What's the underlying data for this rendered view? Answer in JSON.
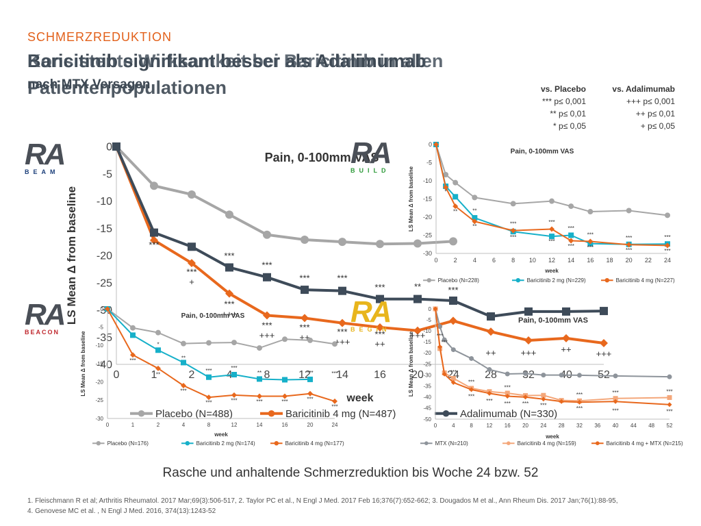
{
  "header": {
    "kicker": "SCHMERZREDUKTION",
    "title_line1_a": "Baricitinib signifikant besser als Adalimumab",
    "title_line1_b": "Konsistente Wirksamkeit bei Baricitinib in allen",
    "title_line2_a": "nach MTX Versagen",
    "title_line2_b": "Patientenpopulationen"
  },
  "significance": {
    "placebo": {
      "head": "vs. Placebo",
      "rows": [
        "*** p≤ 0,001",
        "** p≤ 0,01",
        "* p≤ 0,05"
      ]
    },
    "adalimumab": {
      "head": "vs. Adalimumab",
      "rows": [
        "+++ p≤ 0,001",
        "++ p≤ 0,01",
        "+ p≤ 0,05"
      ]
    }
  },
  "logos": {
    "beam": {
      "ra": "RA",
      "sub": "BEAM"
    },
    "build": {
      "ra": "RA",
      "sub": "BUILD"
    },
    "beacon": {
      "ra": "RA",
      "sub": "BEACON"
    },
    "begin": {
      "ra": "RA",
      "sub": "BEGIN"
    }
  },
  "colors": {
    "placebo": "#a6a6a6",
    "bari4": "#e8681d",
    "adalimumab": "#3e4b59",
    "bari2": "#16b0c9",
    "mtx": "#8e949b",
    "bari4_mono": "#f4a77a",
    "bari4_mtx": "#e8681d"
  },
  "chart_data": [
    {
      "id": "beam",
      "type": "line",
      "title": "Pain, 0-100mm VAS",
      "xlabel": "week",
      "ylabel": "LS Mean Δ from baseline",
      "ylim": [
        -40,
        0
      ],
      "yticks": [
        0,
        -5,
        -10,
        -15,
        -20,
        -25,
        -30,
        -35,
        -40
      ],
      "categories": [
        "0",
        "1",
        "2",
        "4",
        "8",
        "12",
        "14",
        "16",
        "20",
        "24",
        "28",
        "32",
        "40",
        "52"
      ],
      "series": [
        {
          "name": "Placebo (N=488)",
          "color": "placebo",
          "values": [
            0,
            -7.2,
            -8.8,
            -12.5,
            -16.2,
            -17.1,
            -17.5,
            -17.9,
            -17.8,
            -17.4,
            null,
            null,
            null,
            null
          ]
        },
        {
          "name": "Baricitinib 4 mg (N=487)",
          "color": "bari4",
          "values": [
            0,
            -17.2,
            -21.4,
            -27,
            -31,
            -31.5,
            -32.4,
            -33.2,
            -33.8,
            -32,
            -34,
            -35.6,
            -35.2,
            -36.1
          ]
        },
        {
          "name": "Adalimumab (N=330)",
          "color": "adalimumab",
          "values": [
            0,
            -15.8,
            -18.4,
            -22.2,
            -24,
            -26.3,
            -26.5,
            -28,
            -28,
            -28.3,
            -31.2,
            -30.3,
            -30.3,
            -30.2
          ]
        }
      ],
      "annotations": [
        {
          "x": "1",
          "y": -18.6,
          "text": "***"
        },
        {
          "x": "2",
          "y": -23.6,
          "text": "***"
        },
        {
          "x": "2",
          "y": -25.4,
          "text": "+"
        },
        {
          "x": "4",
          "y": -20.6,
          "text": "***"
        },
        {
          "x": "4",
          "y": -29.5,
          "text": "***"
        },
        {
          "x": "4",
          "y": -31.3,
          "text": "+++"
        },
        {
          "x": "8",
          "y": -22.3,
          "text": "***"
        },
        {
          "x": "8",
          "y": -33.4,
          "text": "***"
        },
        {
          "x": "8",
          "y": -35.2,
          "text": "+++"
        },
        {
          "x": "12",
          "y": -24.7,
          "text": "***"
        },
        {
          "x": "12",
          "y": -33.8,
          "text": "***"
        },
        {
          "x": "12",
          "y": -35.6,
          "text": "++"
        },
        {
          "x": "14",
          "y": -24.7,
          "text": "***"
        },
        {
          "x": "14",
          "y": -34.6,
          "text": "***"
        },
        {
          "x": "14",
          "y": -36.4,
          "text": "+++"
        },
        {
          "x": "16",
          "y": -26.4,
          "text": "***"
        },
        {
          "x": "16",
          "y": -35,
          "text": "***"
        },
        {
          "x": "16",
          "y": -36.8,
          "text": "++"
        },
        {
          "x": "20",
          "y": -26.3,
          "text": "**"
        },
        {
          "x": "20",
          "y": -35.2,
          "text": "+++"
        },
        {
          "x": "24",
          "y": -26.9,
          "text": "***"
        },
        {
          "x": "28",
          "y": -38.4,
          "text": "++"
        },
        {
          "x": "32",
          "y": -38.4,
          "text": "+++"
        },
        {
          "x": "40",
          "y": -37.8,
          "text": "++"
        },
        {
          "x": "52",
          "y": -38.6,
          "text": "+++"
        }
      ]
    },
    {
      "id": "build",
      "type": "line",
      "title": "Pain, 0-100mm VAS",
      "xlabel": "week",
      "ylabel": "LS Mean Δ from baseline",
      "ylim": [
        -30,
        0
      ],
      "xlim": [
        0,
        24
      ],
      "yticks": [
        0,
        -5,
        -10,
        -15,
        -20,
        -25,
        -30
      ],
      "xticks": [
        0,
        2,
        4,
        6,
        8,
        10,
        12,
        14,
        16,
        18,
        20,
        22,
        24
      ],
      "series": [
        {
          "name": "Placebo (N=228)",
          "color": "placebo",
          "x": [
            0,
            1,
            2,
            4,
            8,
            12,
            14,
            16,
            20,
            24
          ],
          "values": [
            0,
            -8.3,
            -10.5,
            -14.6,
            -16.3,
            -15.6,
            -17,
            -18.5,
            -18.2,
            -19.5
          ]
        },
        {
          "name": "Baricitinib 2 mg (N=229)",
          "color": "bari2",
          "x": [
            0,
            1,
            2,
            4,
            8,
            12,
            14,
            16,
            20,
            24
          ],
          "values": [
            0,
            -11.5,
            -14.4,
            -20.2,
            -24,
            -25.3,
            -25,
            -27.3,
            -27.5,
            -27.4
          ]
        },
        {
          "name": "Baricitinib 4 mg (N=227)",
          "color": "bari4",
          "x": [
            0,
            1,
            2,
            4,
            8,
            12,
            14,
            16,
            20,
            24
          ],
          "values": [
            0,
            -11.8,
            -17,
            -21.2,
            -23.7,
            -23.3,
            -26.5,
            -26.7,
            -27.6,
            -27.8
          ]
        }
      ],
      "annotations": [
        {
          "x": 1,
          "y": -13.5,
          "text": "*"
        },
        {
          "x": 2,
          "y": -19,
          "text": "**"
        },
        {
          "x": 4,
          "y": -18.8,
          "text": "**"
        },
        {
          "x": 4,
          "y": -23,
          "text": "**"
        },
        {
          "x": 8,
          "y": -22.4,
          "text": "***"
        },
        {
          "x": 8,
          "y": -26,
          "text": "***"
        },
        {
          "x": 12,
          "y": -21.9,
          "text": "***"
        },
        {
          "x": 12,
          "y": -27.2,
          "text": "***"
        },
        {
          "x": 14,
          "y": -23.6,
          "text": "***"
        },
        {
          "x": 14,
          "y": -28.5,
          "text": "***"
        },
        {
          "x": 16,
          "y": -25.4,
          "text": "***"
        },
        {
          "x": 16,
          "y": -28.9,
          "text": "***"
        },
        {
          "x": 20,
          "y": -26.2,
          "text": "***"
        },
        {
          "x": 20,
          "y": -29.6,
          "text": "***"
        },
        {
          "x": 24,
          "y": -26,
          "text": "***"
        },
        {
          "x": 24,
          "y": -29.8,
          "text": "***"
        }
      ]
    },
    {
      "id": "beacon",
      "type": "line",
      "title": "Pain, 0-100mm VAS",
      "xlabel": "week",
      "ylabel": "LS Mean Δ from baseline",
      "ylim": [
        -30,
        0
      ],
      "yticks": [
        0,
        -5,
        -10,
        -15,
        -20,
        -25,
        -30
      ],
      "categories": [
        "0",
        "1",
        "2",
        "4",
        "8",
        "12",
        "14",
        "16",
        "20",
        "24"
      ],
      "series": [
        {
          "name": "Placebo (N=176)",
          "color": "placebo",
          "values": [
            0,
            -5.2,
            -6.5,
            -9.5,
            -9.3,
            -9.2,
            -10.7,
            -8.3,
            -8.6,
            -9.6
          ]
        },
        {
          "name": "Baricitinib 2 mg (N=174)",
          "color": "bari2",
          "values": [
            0,
            -7.2,
            -11.3,
            -14.7,
            -18.7,
            -18,
            -19.2,
            -19.4,
            -19.3,
            null
          ]
        },
        {
          "name": "Baricitinib 4 mg (N=177)",
          "color": "bari4",
          "values": [
            0,
            -12.6,
            -16.3,
            -21,
            -24.2,
            -23.6,
            -23.9,
            -23.9,
            -23.2,
            -25.3
          ]
        }
      ],
      "annotations": [
        {
          "x": "1",
          "y": -14.6,
          "text": "***"
        },
        {
          "x": "2",
          "y": -10.2,
          "text": "*"
        },
        {
          "x": "2",
          "y": -18.5,
          "text": "**"
        },
        {
          "x": "4",
          "y": -14,
          "text": "**"
        },
        {
          "x": "4",
          "y": -23,
          "text": "***"
        },
        {
          "x": "8",
          "y": -17.4,
          "text": "***"
        },
        {
          "x": "8",
          "y": -26.2,
          "text": "***"
        },
        {
          "x": "12",
          "y": -16.7,
          "text": "***"
        },
        {
          "x": "12",
          "y": -25.6,
          "text": "***"
        },
        {
          "x": "14",
          "y": -18,
          "text": "**"
        },
        {
          "x": "14",
          "y": -25.9,
          "text": "***"
        },
        {
          "x": "16",
          "y": -25.9,
          "text": "***"
        },
        {
          "x": "20",
          "y": -18,
          "text": "***"
        },
        {
          "x": "20",
          "y": -25.2,
          "text": "***"
        },
        {
          "x": "24",
          "y": -18.2,
          "text": "***"
        },
        {
          "x": "24",
          "y": -27.3,
          "text": "***"
        }
      ]
    },
    {
      "id": "begin",
      "type": "line",
      "title": "Pain, 0-100mm VAS",
      "xlabel": "week",
      "ylabel": "LS Mean Δ from baseline",
      "ylim": [
        -50,
        0
      ],
      "xlim": [
        0,
        52
      ],
      "yticks": [
        0,
        -5,
        -10,
        -15,
        -20,
        -25,
        -30,
        -35,
        -40,
        -45,
        -50
      ],
      "xticks": [
        0,
        4,
        8,
        12,
        16,
        20,
        24,
        28,
        32,
        36,
        40,
        44,
        48,
        52
      ],
      "series": [
        {
          "name": "MTX (N=210)",
          "color": "mtx",
          "x": [
            0,
            1,
            2,
            4,
            8,
            12,
            16,
            20,
            24,
            28,
            32,
            40,
            52
          ],
          "values": [
            0,
            -8,
            -14,
            -18.5,
            -22.5,
            -27.5,
            -29.5,
            -29.3,
            -30,
            -30,
            -30.1,
            -30.4,
            -30.8
          ]
        },
        {
          "name": "Baricitinib 4 mg (N=159)",
          "color": "bari4_mono",
          "x": [
            0,
            1,
            2,
            4,
            8,
            12,
            16,
            20,
            24,
            28,
            32,
            40,
            52
          ],
          "values": [
            0,
            -18,
            -29,
            -31.5,
            -36,
            -37.5,
            -38.2,
            -39.3,
            -39.2,
            -41.5,
            -41.7,
            -40.6,
            -40.2
          ]
        },
        {
          "name": "Baricitinib 4 mg + MTX (N=215)",
          "color": "bari4_mtx",
          "x": [
            0,
            1,
            2,
            4,
            8,
            12,
            16,
            20,
            24,
            28,
            32,
            40,
            52
          ],
          "values": [
            0,
            -17.2,
            -29.6,
            -33.4,
            -36.6,
            -38.3,
            -39.6,
            -40,
            -40.9,
            -42,
            -42.3,
            -42,
            -43.4
          ]
        }
      ],
      "annotations": [
        {
          "x": 1,
          "y": -13,
          "text": "***"
        },
        {
          "x": 2,
          "y": -16,
          "text": "***"
        },
        {
          "x": 4,
          "y": -29.5,
          "text": "***"
        },
        {
          "x": 8,
          "y": -34,
          "text": "***"
        },
        {
          "x": 8,
          "y": -40.5,
          "text": "***"
        },
        {
          "x": 12,
          "y": -42.6,
          "text": "***"
        },
        {
          "x": 16,
          "y": -36.5,
          "text": "***"
        },
        {
          "x": 16,
          "y": -43.8,
          "text": "***"
        },
        {
          "x": 20,
          "y": -43.8,
          "text": "***"
        },
        {
          "x": 24,
          "y": -44.6,
          "text": "***"
        },
        {
          "x": 32,
          "y": -39.8,
          "text": "***"
        },
        {
          "x": 32,
          "y": -46,
          "text": "***"
        },
        {
          "x": 40,
          "y": -38.8,
          "text": "***"
        },
        {
          "x": 40,
          "y": -47,
          "text": "***"
        },
        {
          "x": 52,
          "y": -38.4,
          "text": "***"
        },
        {
          "x": 52,
          "y": -47.4,
          "text": "***"
        }
      ]
    }
  ],
  "footer": {
    "conclusion": "Rasche und anhaltende Schmerzreduktion bis Woche 24 bzw. 52",
    "refs_line1": "1. Fleischmann R et al; Arthritis Rheumatol. 2017 Mar;69(3):506-517, 2. Taylor PC et al., N Engl J Med. 2017 Feb 16;376(7):652-662; 3. Dougados M et al., Ann Rheum Dis. 2017 Jan;76(1):88-95,",
    "refs_line2": "4. Genovese MC et al. , N Engl J Med. 2016, 374(13):1243-52"
  }
}
